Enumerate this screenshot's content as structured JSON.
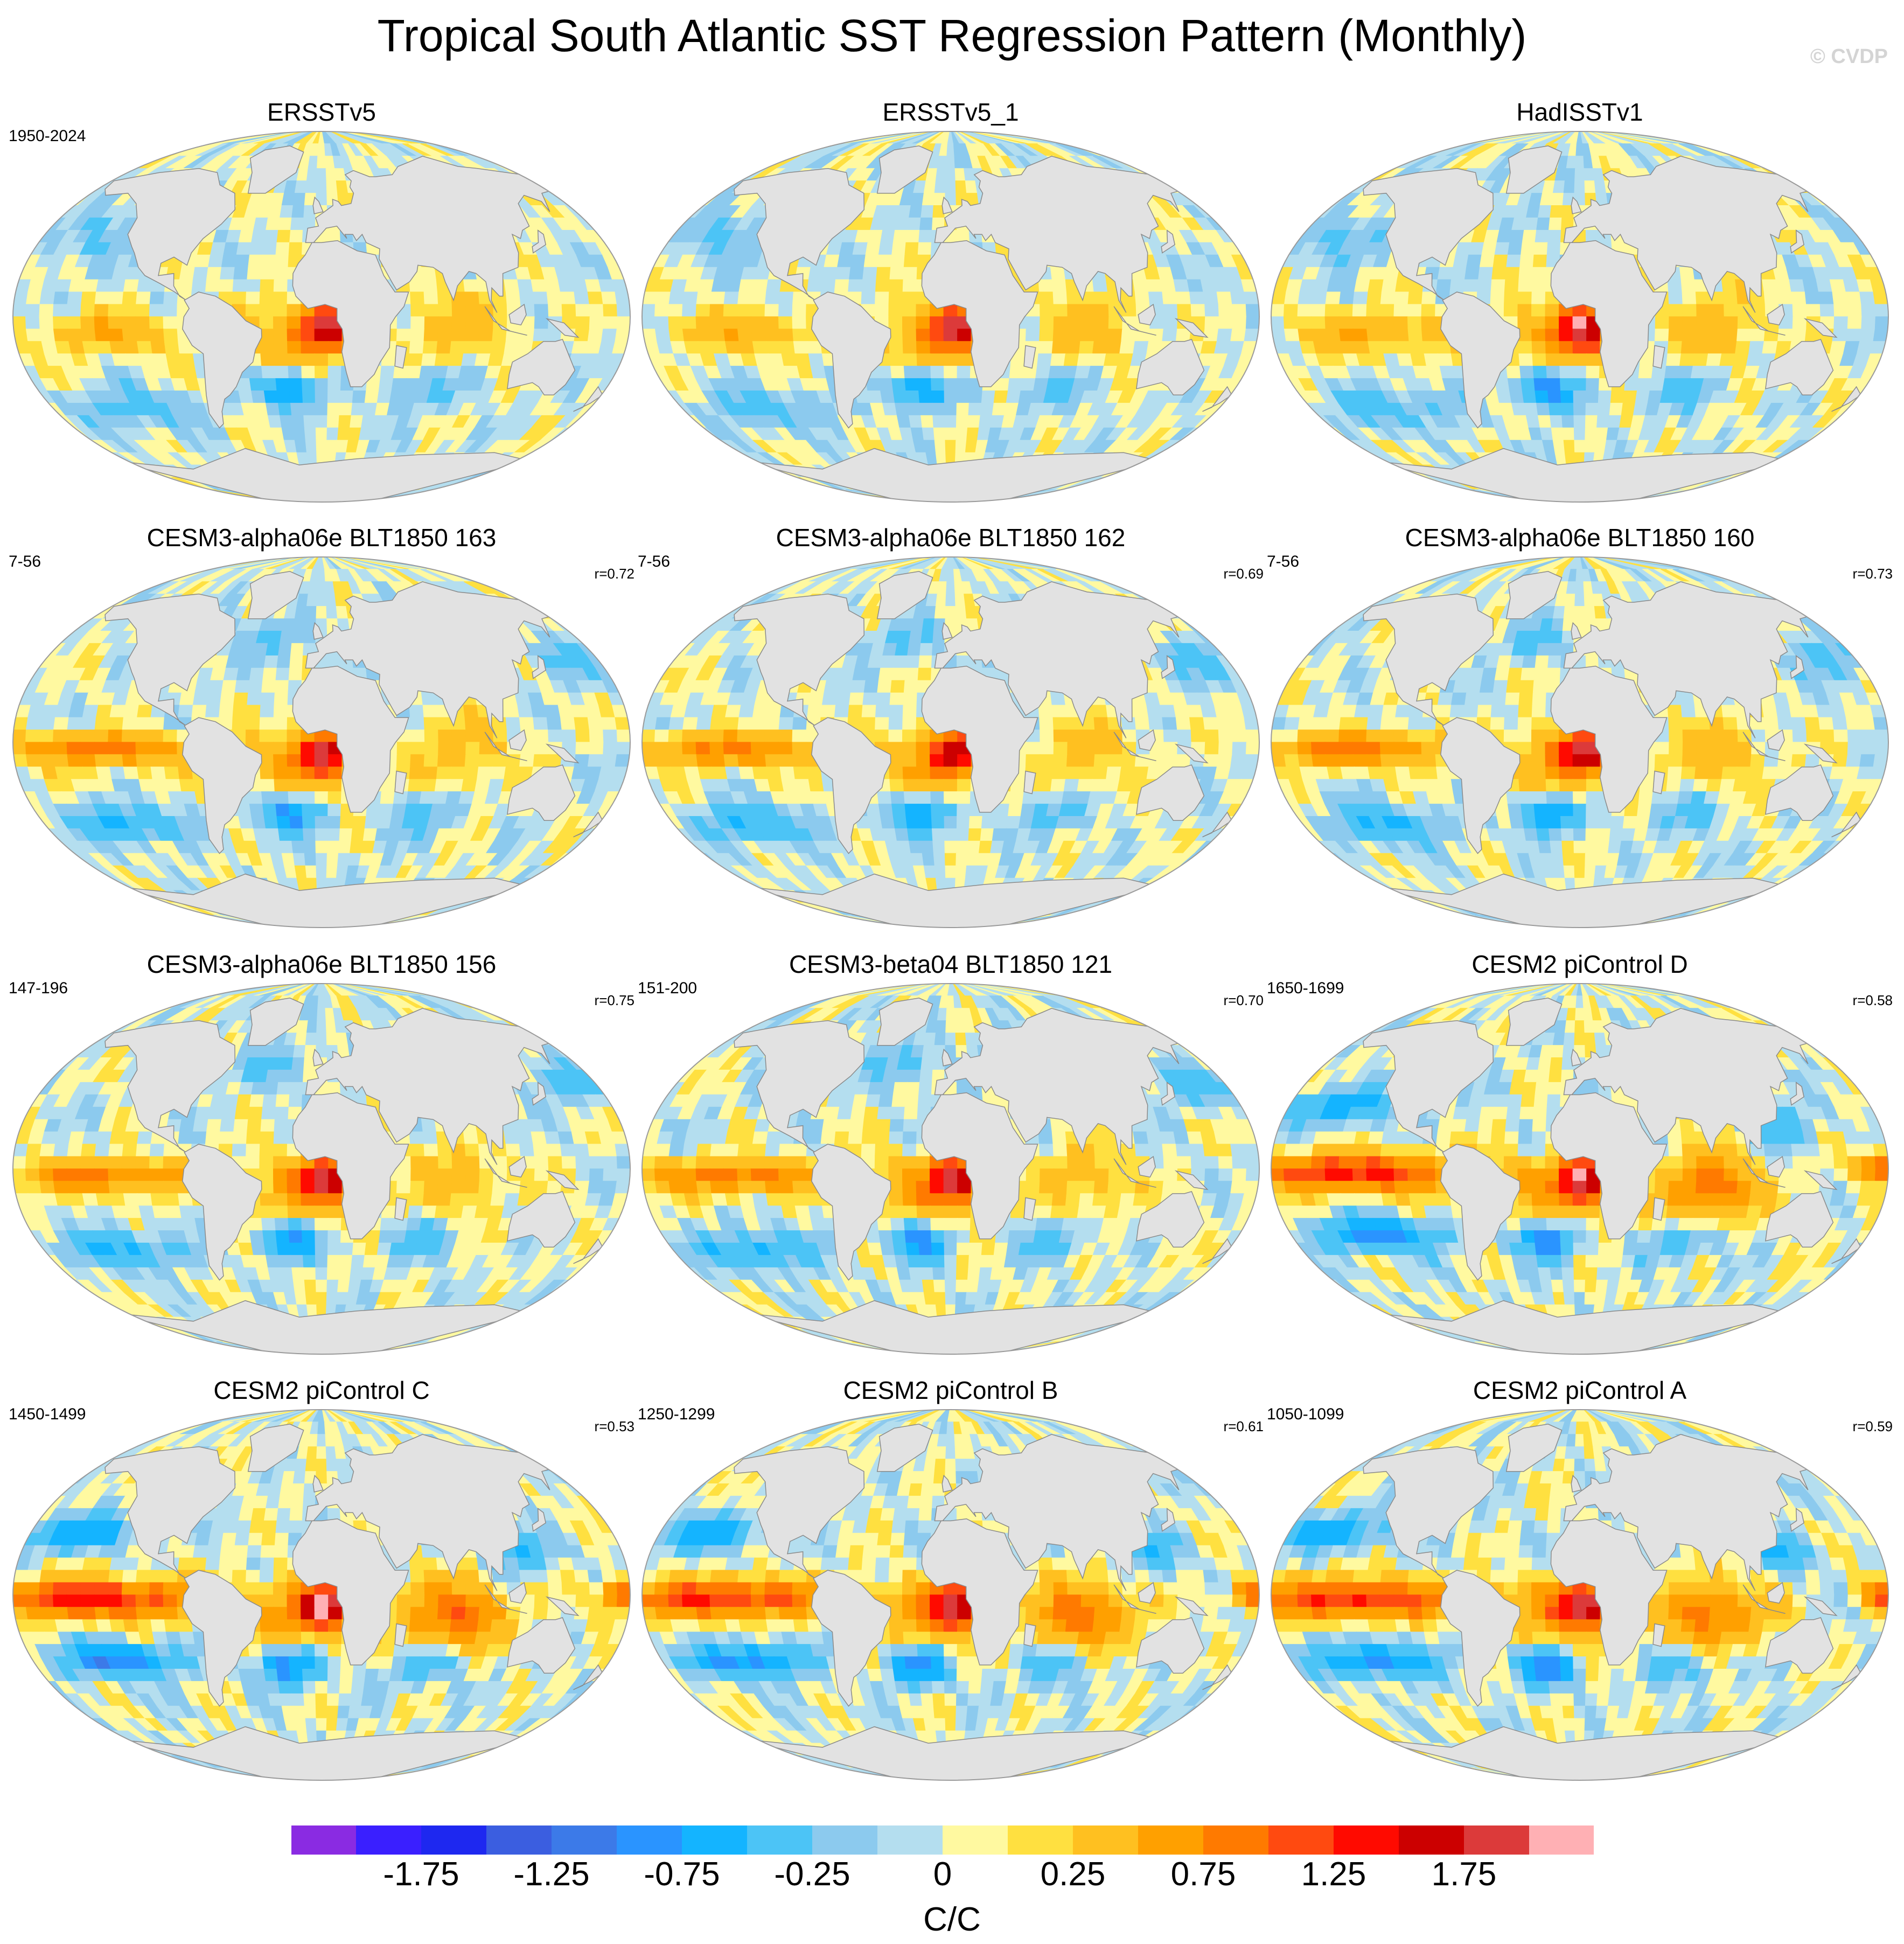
{
  "title": "Tropical South Atlantic SST Regression Pattern (Monthly)",
  "watermark": "© CVDP",
  "chart_data": {
    "type": "heatmap",
    "projection": "global map (Robinson-like), Atlantic-centered",
    "panels": [
      {
        "title": "ERSSTv5",
        "period": "1950-2024",
        "r": "",
        "pattern": "obs",
        "strength": 1.0
      },
      {
        "title": "ERSSTv5_1",
        "period": "",
        "r": "",
        "pattern": "obs",
        "strength": 1.0
      },
      {
        "title": "HadISSTv1",
        "period": "",
        "r": "",
        "pattern": "obs",
        "strength": 1.05
      },
      {
        "title": "CESM3-alpha06e BLT1850 163",
        "period": "7-56",
        "r": "r=0.72",
        "pattern": "model",
        "strength": 1.0
      },
      {
        "title": "CESM3-alpha06e BLT1850 162",
        "period": "7-56",
        "r": "r=0.69",
        "pattern": "model",
        "strength": 0.95
      },
      {
        "title": "CESM3-alpha06e BLT1850 160",
        "period": "7-56",
        "r": "r=0.73",
        "pattern": "model",
        "strength": 1.0
      },
      {
        "title": "CESM3-alpha06e BLT1850 156",
        "period": "147-196",
        "r": "r=0.75",
        "pattern": "model",
        "strength": 1.0
      },
      {
        "title": "CESM3-beta04 BLT1850 121",
        "period": "151-200",
        "r": "r=0.70",
        "pattern": "model",
        "strength": 1.05
      },
      {
        "title": "CESM2 piControl D",
        "period": "1650-1699",
        "r": "r=0.58",
        "pattern": "pi",
        "strength": 1.1
      },
      {
        "title": "CESM2 piControl C",
        "period": "1450-1499",
        "r": "r=0.53",
        "pattern": "pi",
        "strength": 1.15
      },
      {
        "title": "CESM2 piControl B",
        "period": "1250-1299",
        "r": "r=0.61",
        "pattern": "pi",
        "strength": 1.05
      },
      {
        "title": "CESM2 piControl A",
        "period": "1050-1099",
        "r": "r=0.59",
        "pattern": "pi",
        "strength": 1.1
      }
    ],
    "colorbar": {
      "colors": [
        "#8a2be2",
        "#3a1fff",
        "#1e28f0",
        "#3b5ee0",
        "#3c7ae8",
        "#2a94ff",
        "#14b4ff",
        "#4cc4f6",
        "#8ccaee",
        "#b4deef",
        "#fff9a0",
        "#ffe040",
        "#ffc020",
        "#ffa000",
        "#ff7a00",
        "#ff4a10",
        "#ff0a00",
        "#cc0000",
        "#dc3a3a",
        "#ffb0b4"
      ],
      "tick_values": [
        -1.75,
        -1.25,
        -0.75,
        -0.25,
        0,
        0.25,
        0.75,
        1.25,
        1.75
      ],
      "tick_labels": [
        "-1.75",
        "-1.25",
        "-0.75",
        "-0.25",
        "0",
        "0.25",
        "0.75",
        "1.25",
        "1.75"
      ],
      "boundaries": [
        -2.0,
        -1.75,
        -1.5,
        -1.25,
        -1.0,
        -0.75,
        -0.5,
        -0.25,
        -0.1,
        0,
        0.1,
        0.25,
        0.5,
        0.75,
        1.0,
        1.25,
        1.5,
        1.75,
        2.0
      ],
      "units": "C/C"
    }
  }
}
